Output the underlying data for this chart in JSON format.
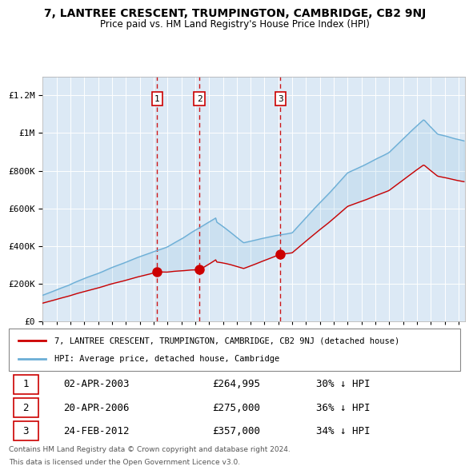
{
  "title": "7, LANTREE CRESCENT, TRUMPINGTON, CAMBRIDGE, CB2 9NJ",
  "subtitle": "Price paid vs. HM Land Registry's House Price Index (HPI)",
  "background_color": "#ffffff",
  "plot_bg_color": "#dce9f5",
  "hpi_color": "#6baed6",
  "price_color": "#cc0000",
  "sale_marker_color": "#cc0000",
  "vline_color": "#cc0000",
  "grid_color": "#ffffff",
  "sales": [
    {
      "num": 1,
      "date_num": 2003.25,
      "price": 264995,
      "label": "02-APR-2003",
      "pct": "30% ↓ HPI"
    },
    {
      "num": 2,
      "date_num": 2006.3,
      "price": 275000,
      "label": "20-APR-2006",
      "pct": "36% ↓ HPI"
    },
    {
      "num": 3,
      "date_num": 2012.15,
      "price": 357000,
      "label": "24-FEB-2012",
      "pct": "34% ↓ HPI"
    }
  ],
  "ylim": [
    0,
    1300000
  ],
  "xlim": [
    1995,
    2025.5
  ],
  "yticks": [
    0,
    200000,
    400000,
    600000,
    800000,
    1000000,
    1200000
  ],
  "ytick_labels": [
    "£0",
    "£200K",
    "£400K",
    "£600K",
    "£800K",
    "£1M",
    "£1.2M"
  ],
  "legend_line1": "7, LANTREE CRESCENT, TRUMPINGTON, CAMBRIDGE, CB2 9NJ (detached house)",
  "legend_line2": "HPI: Average price, detached house, Cambridge",
  "footer1": "Contains HM Land Registry data © Crown copyright and database right 2024.",
  "footer2": "This data is licensed under the Open Government Licence v3.0."
}
